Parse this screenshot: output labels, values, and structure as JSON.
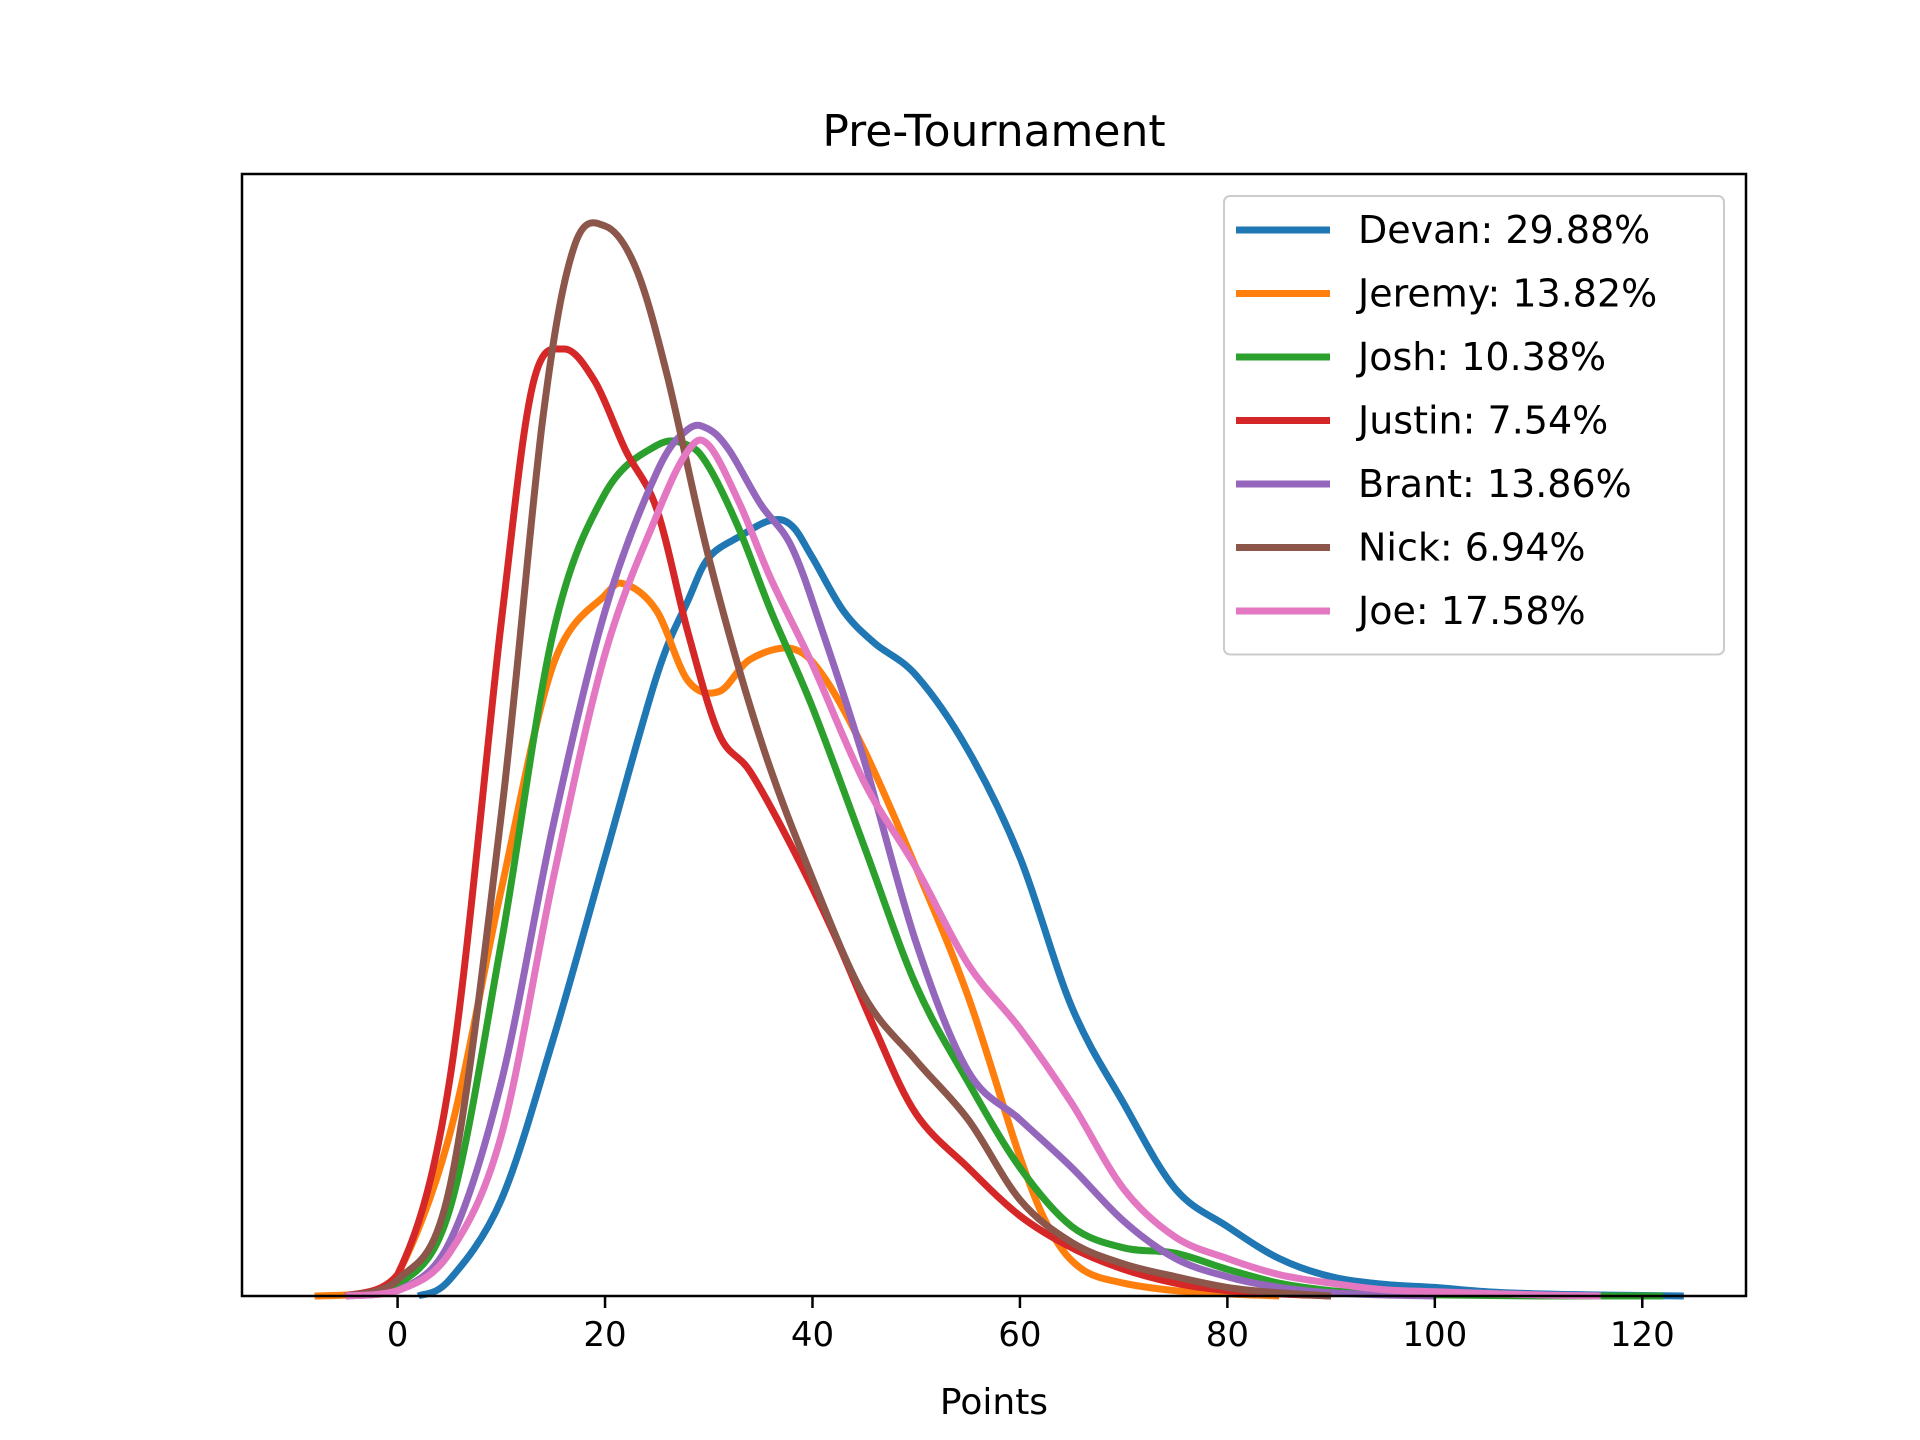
{
  "chart_data": {
    "type": "line",
    "title": "Pre-Tournament",
    "xlabel": "Points",
    "ylabel": "",
    "xlim": [
      -15,
      130
    ],
    "ylim": [
      0,
      1
    ],
    "xticks": [
      0,
      20,
      40,
      60,
      80,
      100,
      120
    ],
    "yticks_shown": false,
    "grid": false,
    "legend_position": "top-right",
    "series": [
      {
        "name": "Devan:   29.88%",
        "color": "#1f77b4",
        "x": [
          2,
          5,
          10,
          15,
          20,
          25,
          28,
          30,
          33,
          36,
          38,
          40,
          43,
          46,
          50,
          55,
          60,
          65,
          70,
          75,
          80,
          85,
          90,
          95,
          100,
          105,
          110,
          115,
          120,
          124
        ],
        "y": [
          0.0,
          0.015,
          0.09,
          0.24,
          0.41,
          0.58,
          0.65,
          0.69,
          0.71,
          0.725,
          0.72,
          0.69,
          0.64,
          0.61,
          0.58,
          0.51,
          0.41,
          0.27,
          0.18,
          0.1,
          0.065,
          0.035,
          0.018,
          0.011,
          0.008,
          0.004,
          0.002,
          0.001,
          0.0005,
          0.0
        ]
      },
      {
        "name": "Jeremy:  13.82%",
        "color": "#ff7f0e",
        "x": [
          -8,
          -3,
          0,
          5,
          10,
          15,
          20,
          22,
          25,
          28,
          31,
          34,
          38,
          41,
          45,
          50,
          55,
          60,
          63,
          66,
          70,
          75,
          80,
          85
        ],
        "y": [
          0.0,
          0.003,
          0.02,
          0.15,
          0.38,
          0.59,
          0.655,
          0.665,
          0.64,
          0.575,
          0.565,
          0.595,
          0.605,
          0.58,
          0.51,
          0.4,
          0.28,
          0.13,
          0.06,
          0.025,
          0.012,
          0.005,
          0.002,
          0.0
        ]
      },
      {
        "name": "Josh:    10.38%",
        "color": "#2ca02c",
        "x": [
          -5,
          0,
          5,
          10,
          15,
          20,
          25,
          28,
          30,
          33,
          36,
          40,
          45,
          50,
          55,
          60,
          65,
          70,
          75,
          80,
          85,
          90,
          95,
          100,
          110,
          122
        ],
        "y": [
          0.0,
          0.01,
          0.08,
          0.33,
          0.62,
          0.75,
          0.795,
          0.795,
          0.775,
          0.715,
          0.64,
          0.55,
          0.42,
          0.29,
          0.2,
          0.12,
          0.065,
          0.045,
          0.04,
          0.025,
          0.012,
          0.005,
          0.002,
          0.001,
          0.0,
          0.0
        ]
      },
      {
        "name": "Justin:  7.54%",
        "color": "#d62728",
        "x": [
          -5,
          0,
          5,
          10,
          13,
          16,
          19,
          22,
          25,
          28,
          31,
          34,
          38,
          42,
          46,
          50,
          55,
          60,
          65,
          70,
          75,
          80,
          85,
          90
        ],
        "y": [
          0.0,
          0.02,
          0.2,
          0.63,
          0.85,
          0.885,
          0.855,
          0.79,
          0.735,
          0.62,
          0.525,
          0.49,
          0.42,
          0.34,
          0.25,
          0.17,
          0.12,
          0.075,
          0.045,
          0.025,
          0.012,
          0.005,
          0.002,
          0.0
        ]
      },
      {
        "name": "Brant:   13.86%",
        "color": "#9467bd",
        "x": [
          -5,
          0,
          5,
          10,
          15,
          20,
          25,
          28,
          30,
          32,
          35,
          38,
          41,
          45,
          50,
          55,
          60,
          65,
          70,
          75,
          80,
          85,
          90,
          95,
          100
        ],
        "y": [
          0.0,
          0.005,
          0.05,
          0.2,
          0.44,
          0.64,
          0.77,
          0.81,
          0.81,
          0.79,
          0.74,
          0.7,
          0.62,
          0.5,
          0.33,
          0.21,
          0.165,
          0.12,
          0.07,
          0.035,
          0.018,
          0.008,
          0.003,
          0.001,
          0.0
        ]
      },
      {
        "name": "Nick:    6.94%",
        "color": "#8c564b",
        "x": [
          -5,
          0,
          5,
          10,
          14,
          17,
          20,
          23,
          26,
          30,
          35,
          40,
          45,
          50,
          55,
          60,
          65,
          70,
          75,
          80,
          85,
          90
        ],
        "y": [
          0.0,
          0.015,
          0.1,
          0.45,
          0.82,
          0.98,
          1.0,
          0.96,
          0.86,
          0.69,
          0.52,
          0.39,
          0.28,
          0.22,
          0.165,
          0.09,
          0.05,
          0.03,
          0.018,
          0.008,
          0.003,
          0.0
        ]
      },
      {
        "name": "Joe:     17.58%",
        "color": "#e377c2",
        "x": [
          -5,
          0,
          5,
          10,
          15,
          20,
          25,
          28,
          30,
          33,
          36,
          40,
          45,
          50,
          55,
          60,
          65,
          70,
          75,
          80,
          85,
          90,
          95,
          100,
          110,
          116
        ],
        "y": [
          0.0,
          0.005,
          0.04,
          0.15,
          0.39,
          0.6,
          0.73,
          0.79,
          0.795,
          0.74,
          0.67,
          0.59,
          0.48,
          0.4,
          0.31,
          0.25,
          0.18,
          0.1,
          0.055,
          0.035,
          0.02,
          0.012,
          0.006,
          0.004,
          0.001,
          0.0
        ]
      }
    ]
  }
}
